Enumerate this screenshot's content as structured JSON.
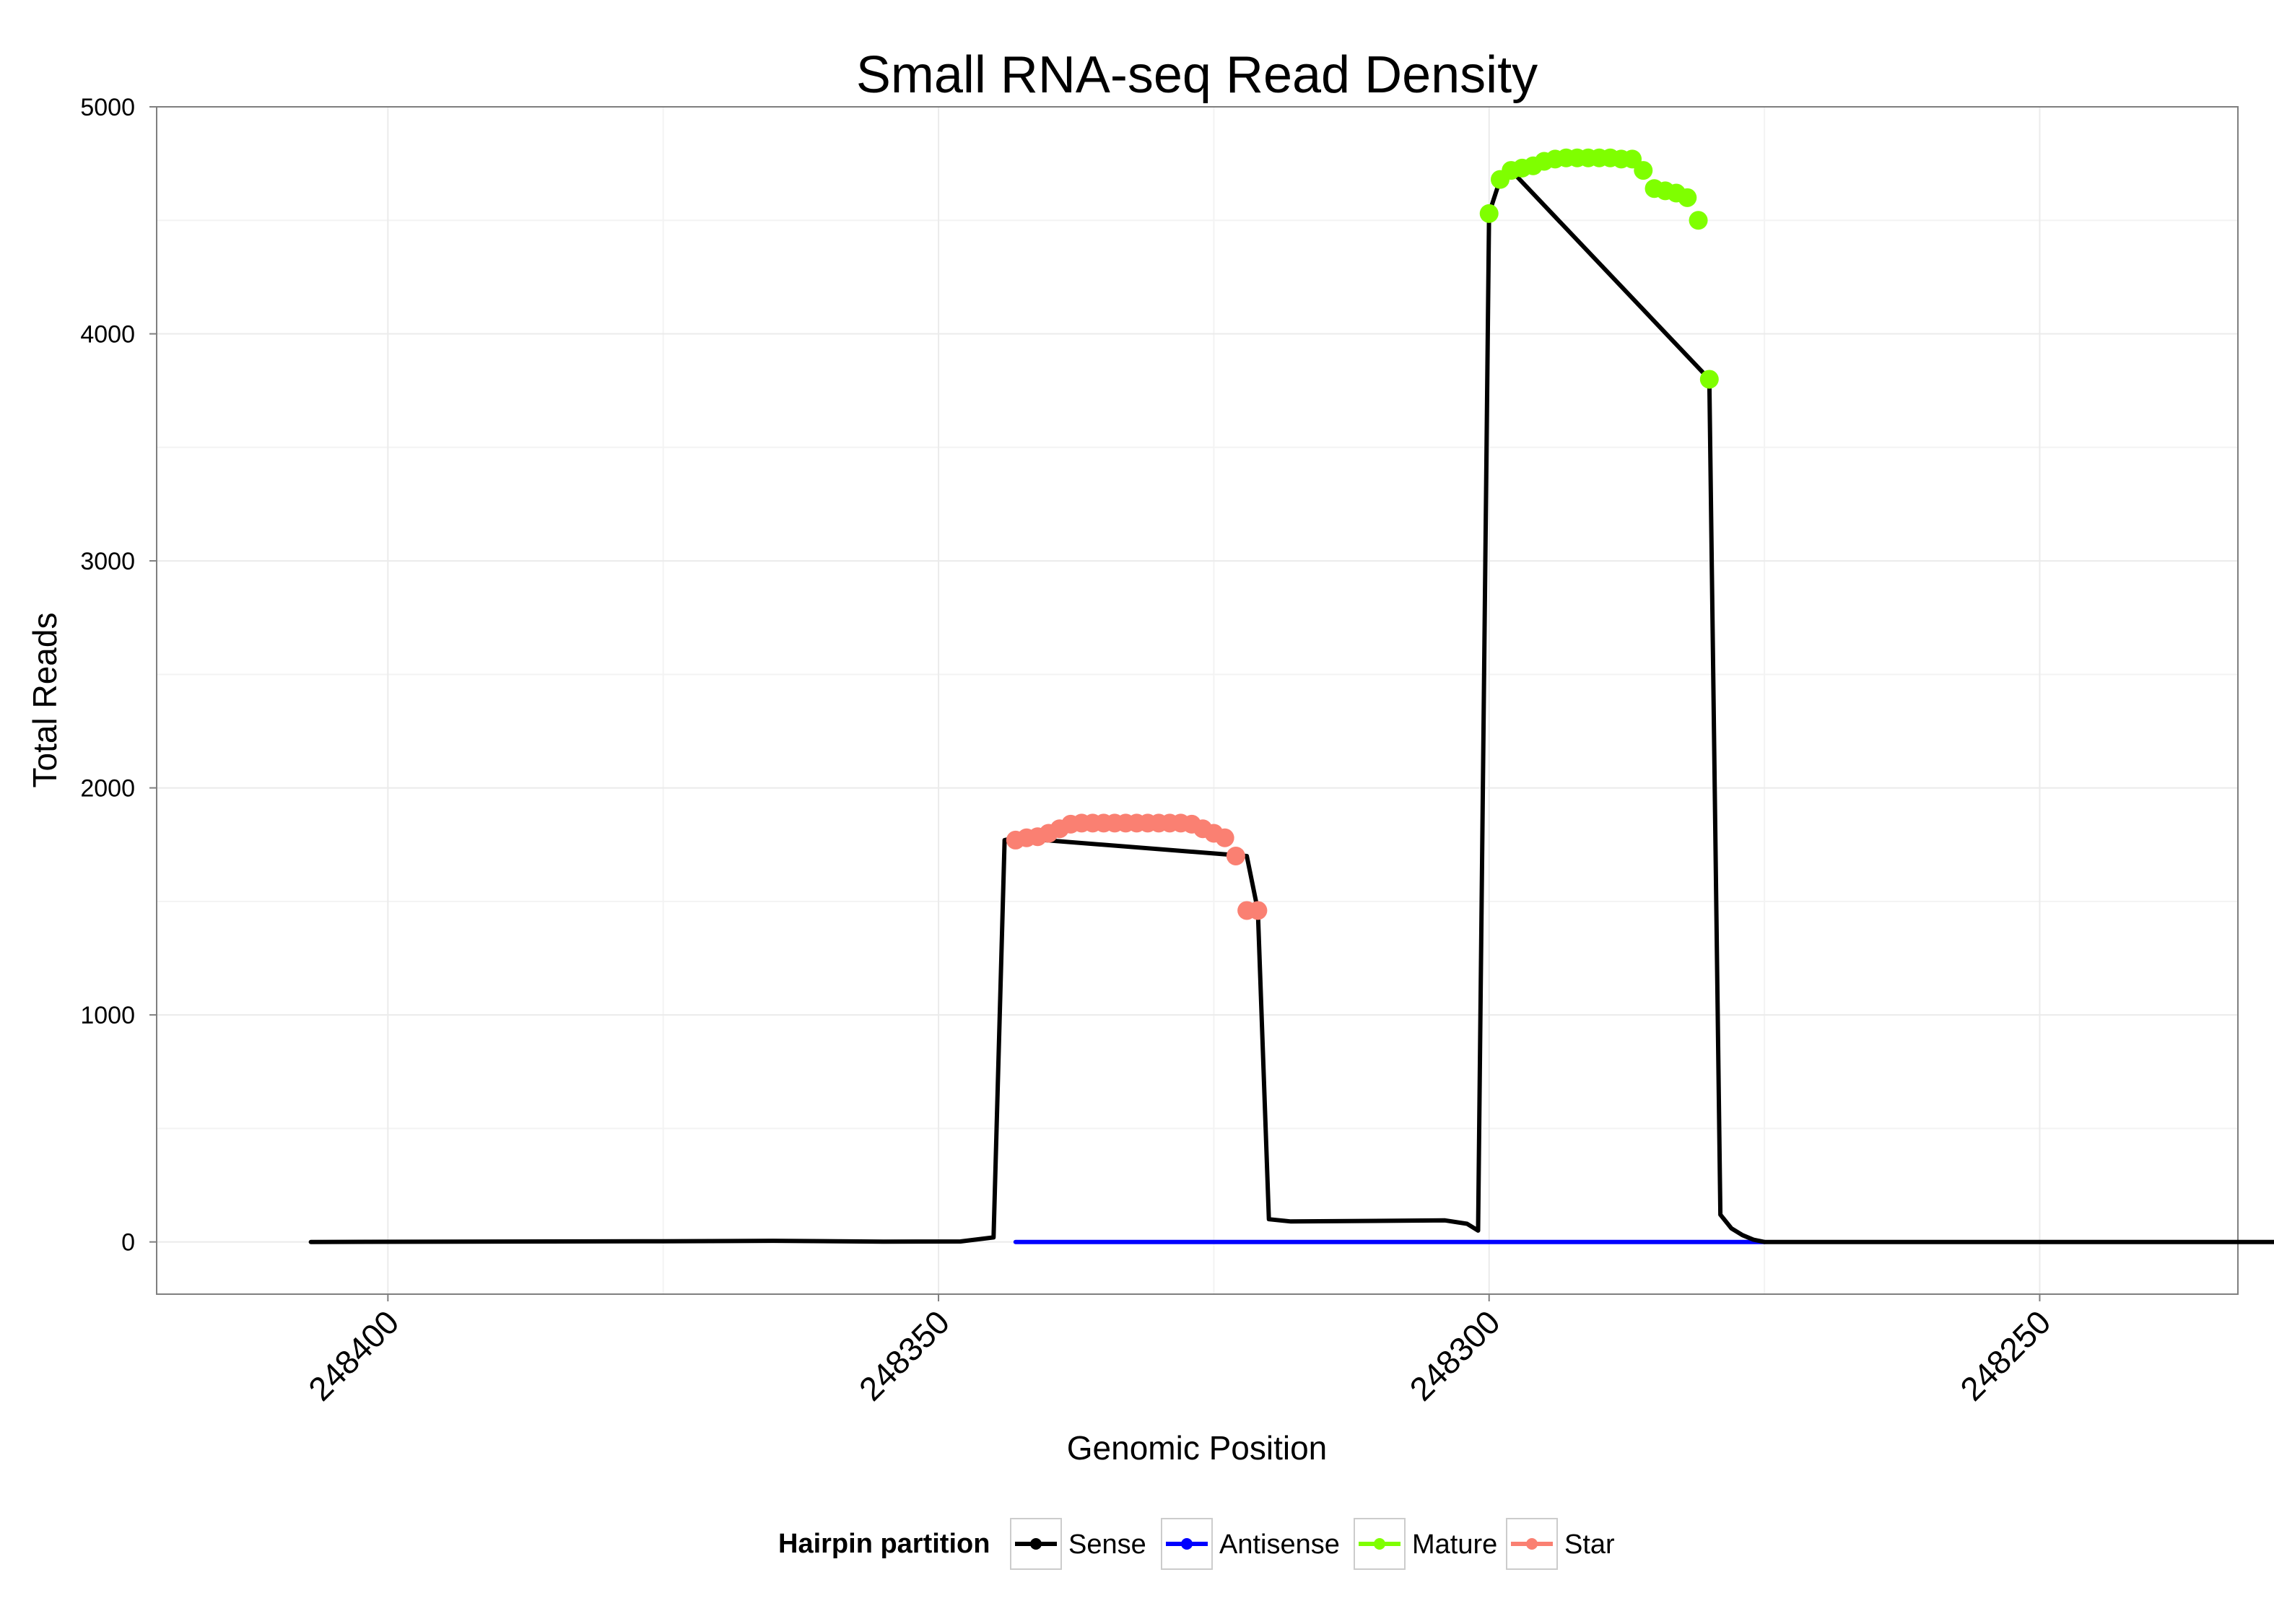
{
  "chart_data": {
    "type": "line",
    "title": "Small RNA-seq Read Density",
    "xlabel": "Genomic Position",
    "ylabel": "Total Reads",
    "xlim": [
      248421,
      248232
    ],
    "x_reversed": true,
    "ylim": [
      -230,
      5000
    ],
    "x_ticks": [
      248400,
      248350,
      248300,
      248250
    ],
    "x_tick_labels": [
      "248400",
      "248350",
      "248300",
      "248250"
    ],
    "y_ticks": [
      0,
      1000,
      2000,
      3000,
      4000,
      5000
    ],
    "y_tick_labels": [
      "0",
      "1000",
      "2000",
      "3000",
      "4000",
      "5000"
    ],
    "grid": true,
    "legend": {
      "title": "Hairpin partition",
      "position": "bottom",
      "entries": [
        "Sense",
        "Antisense",
        "Mature",
        "Star"
      ]
    },
    "series": [
      {
        "name": "Sense",
        "color": "#000000",
        "x": [
          248407,
          248375,
          248365,
          248355,
          248348,
          248345,
          248344,
          248343,
          248322,
          248321,
          248320,
          248318,
          248304,
          248302,
          248301,
          248300,
          248299,
          248298,
          248280,
          248279,
          248278,
          248277,
          248276,
          248275,
          248274,
          248273,
          248272,
          248271,
          248270,
          248269,
          248268,
          248267,
          248266,
          248265,
          248264,
          248263,
          248262,
          248261,
          248260,
          248259,
          248258,
          248257,
          248256,
          248255,
          248254,
          248253,
          248252,
          248251,
          248250,
          248249,
          248248,
          248247,
          248246,
          248245,
          248244,
          248243,
          248242,
          248241,
          248240,
          248239,
          248238,
          248237,
          248236,
          248235,
          248234,
          248233,
          248232,
          248231,
          248230,
          248229,
          248228,
          248227,
          248226,
          248225,
          248224,
          248223,
          248222,
          248221,
          248220,
          248219,
          248218,
          248217
        ],
        "y": [
          0,
          3,
          5,
          1,
          2,
          20,
          1770,
          1780,
          1700,
          1460,
          100,
          90,
          95,
          80,
          50,
          4530,
          4680,
          4720,
          3800,
          120,
          60,
          30,
          10,
          0,
          0,
          0,
          0,
          0,
          0,
          0,
          0,
          0,
          0,
          0,
          0,
          0,
          0,
          0,
          0,
          0,
          0,
          0,
          0,
          0,
          0,
          0,
          0,
          0,
          0,
          0,
          0,
          0,
          0,
          0,
          0,
          0,
          0,
          0,
          0,
          0,
          0,
          0,
          0,
          0,
          0,
          0,
          0,
          0,
          0,
          0,
          0,
          0,
          0,
          0,
          0,
          0,
          0,
          0,
          0,
          0,
          0,
          0
        ]
      },
      {
        "name": "Antisense",
        "color": "#0000ff",
        "x": [
          248343,
          248275
        ],
        "y": [
          0,
          0
        ]
      },
      {
        "name": "Mature",
        "color": "#7fff00",
        "x": [
          248300,
          248299,
          248298,
          248297,
          248296,
          248295,
          248294,
          248293,
          248292,
          248291,
          248290,
          248289,
          248288,
          248287,
          248286,
          248285,
          248284,
          248283,
          248282,
          248281,
          248280
        ],
        "y": [
          4530,
          4680,
          4720,
          4730,
          4740,
          4760,
          4770,
          4775,
          4775,
          4775,
          4775,
          4775,
          4770,
          4770,
          4720,
          4640,
          4630,
          4620,
          4600,
          4500,
          3800
        ]
      },
      {
        "name": "Star",
        "color": "#fa8072",
        "x": [
          248343,
          248342,
          248341,
          248340,
          248339,
          248338,
          248337,
          248336,
          248335,
          248334,
          248333,
          248332,
          248331,
          248330,
          248329,
          248328,
          248327,
          248326,
          248325,
          248324,
          248323,
          248322,
          248321
        ],
        "y": [
          1770,
          1780,
          1785,
          1800,
          1820,
          1840,
          1845,
          1845,
          1845,
          1845,
          1845,
          1845,
          1845,
          1845,
          1845,
          1845,
          1840,
          1820,
          1800,
          1780,
          1700,
          1460,
          1460
        ]
      }
    ]
  }
}
